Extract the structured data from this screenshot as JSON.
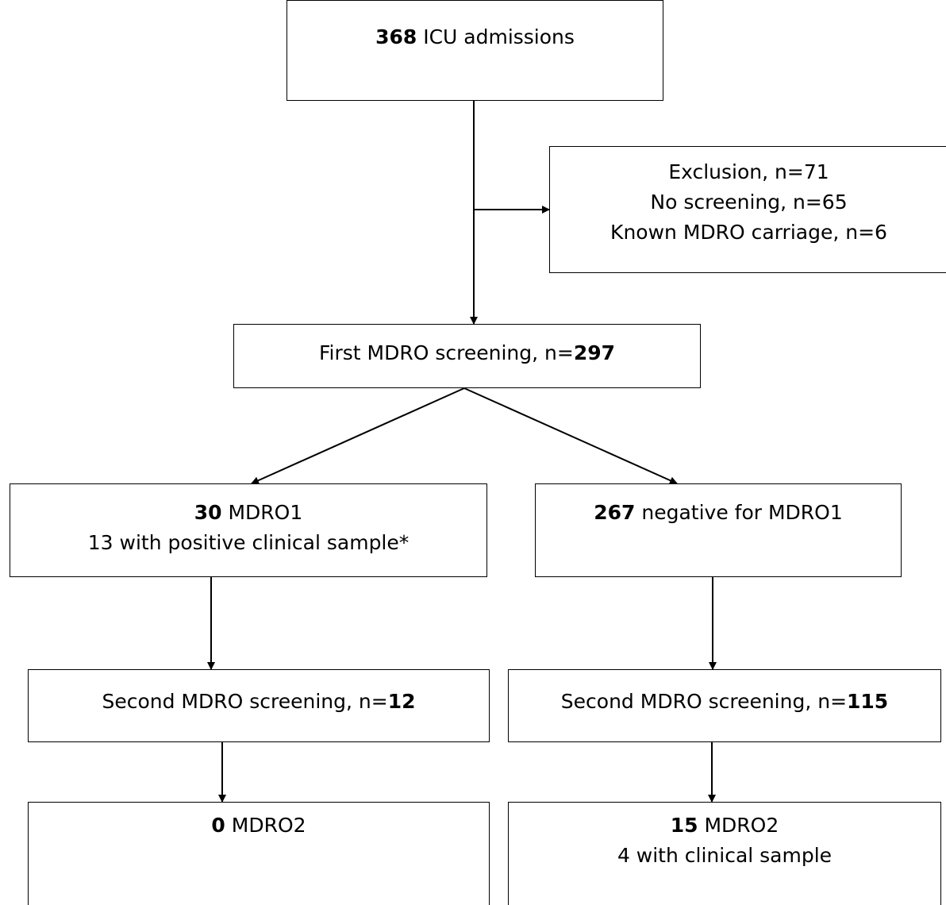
{
  "boxes": {
    "admissions": {
      "num": "368",
      "text": " ICU admissions"
    },
    "exclusion": {
      "line1": "Exclusion, n=71",
      "line2": "No screening, n=65",
      "line3": "Known MDRO carriage, n=6"
    },
    "first_screening": {
      "text": "First MDRO screening, n=",
      "num": "297"
    },
    "mdro1_positive": {
      "num": "30",
      "text": " MDRO1",
      "line2": "13 with positive clinical sample*"
    },
    "mdro1_negative": {
      "num": "267",
      "text": " negative for MDRO1"
    },
    "second_screening_left": {
      "text": "Second MDRO screening, n=",
      "num": "12"
    },
    "second_screening_right": {
      "text": "Second MDRO screening, n=",
      "num": "115"
    },
    "mdro2_left": {
      "num": "0",
      "text": " MDRO2"
    },
    "mdro2_right": {
      "num": "15",
      "text": " MDRO2",
      "line2": "4 with clinical sample"
    }
  }
}
